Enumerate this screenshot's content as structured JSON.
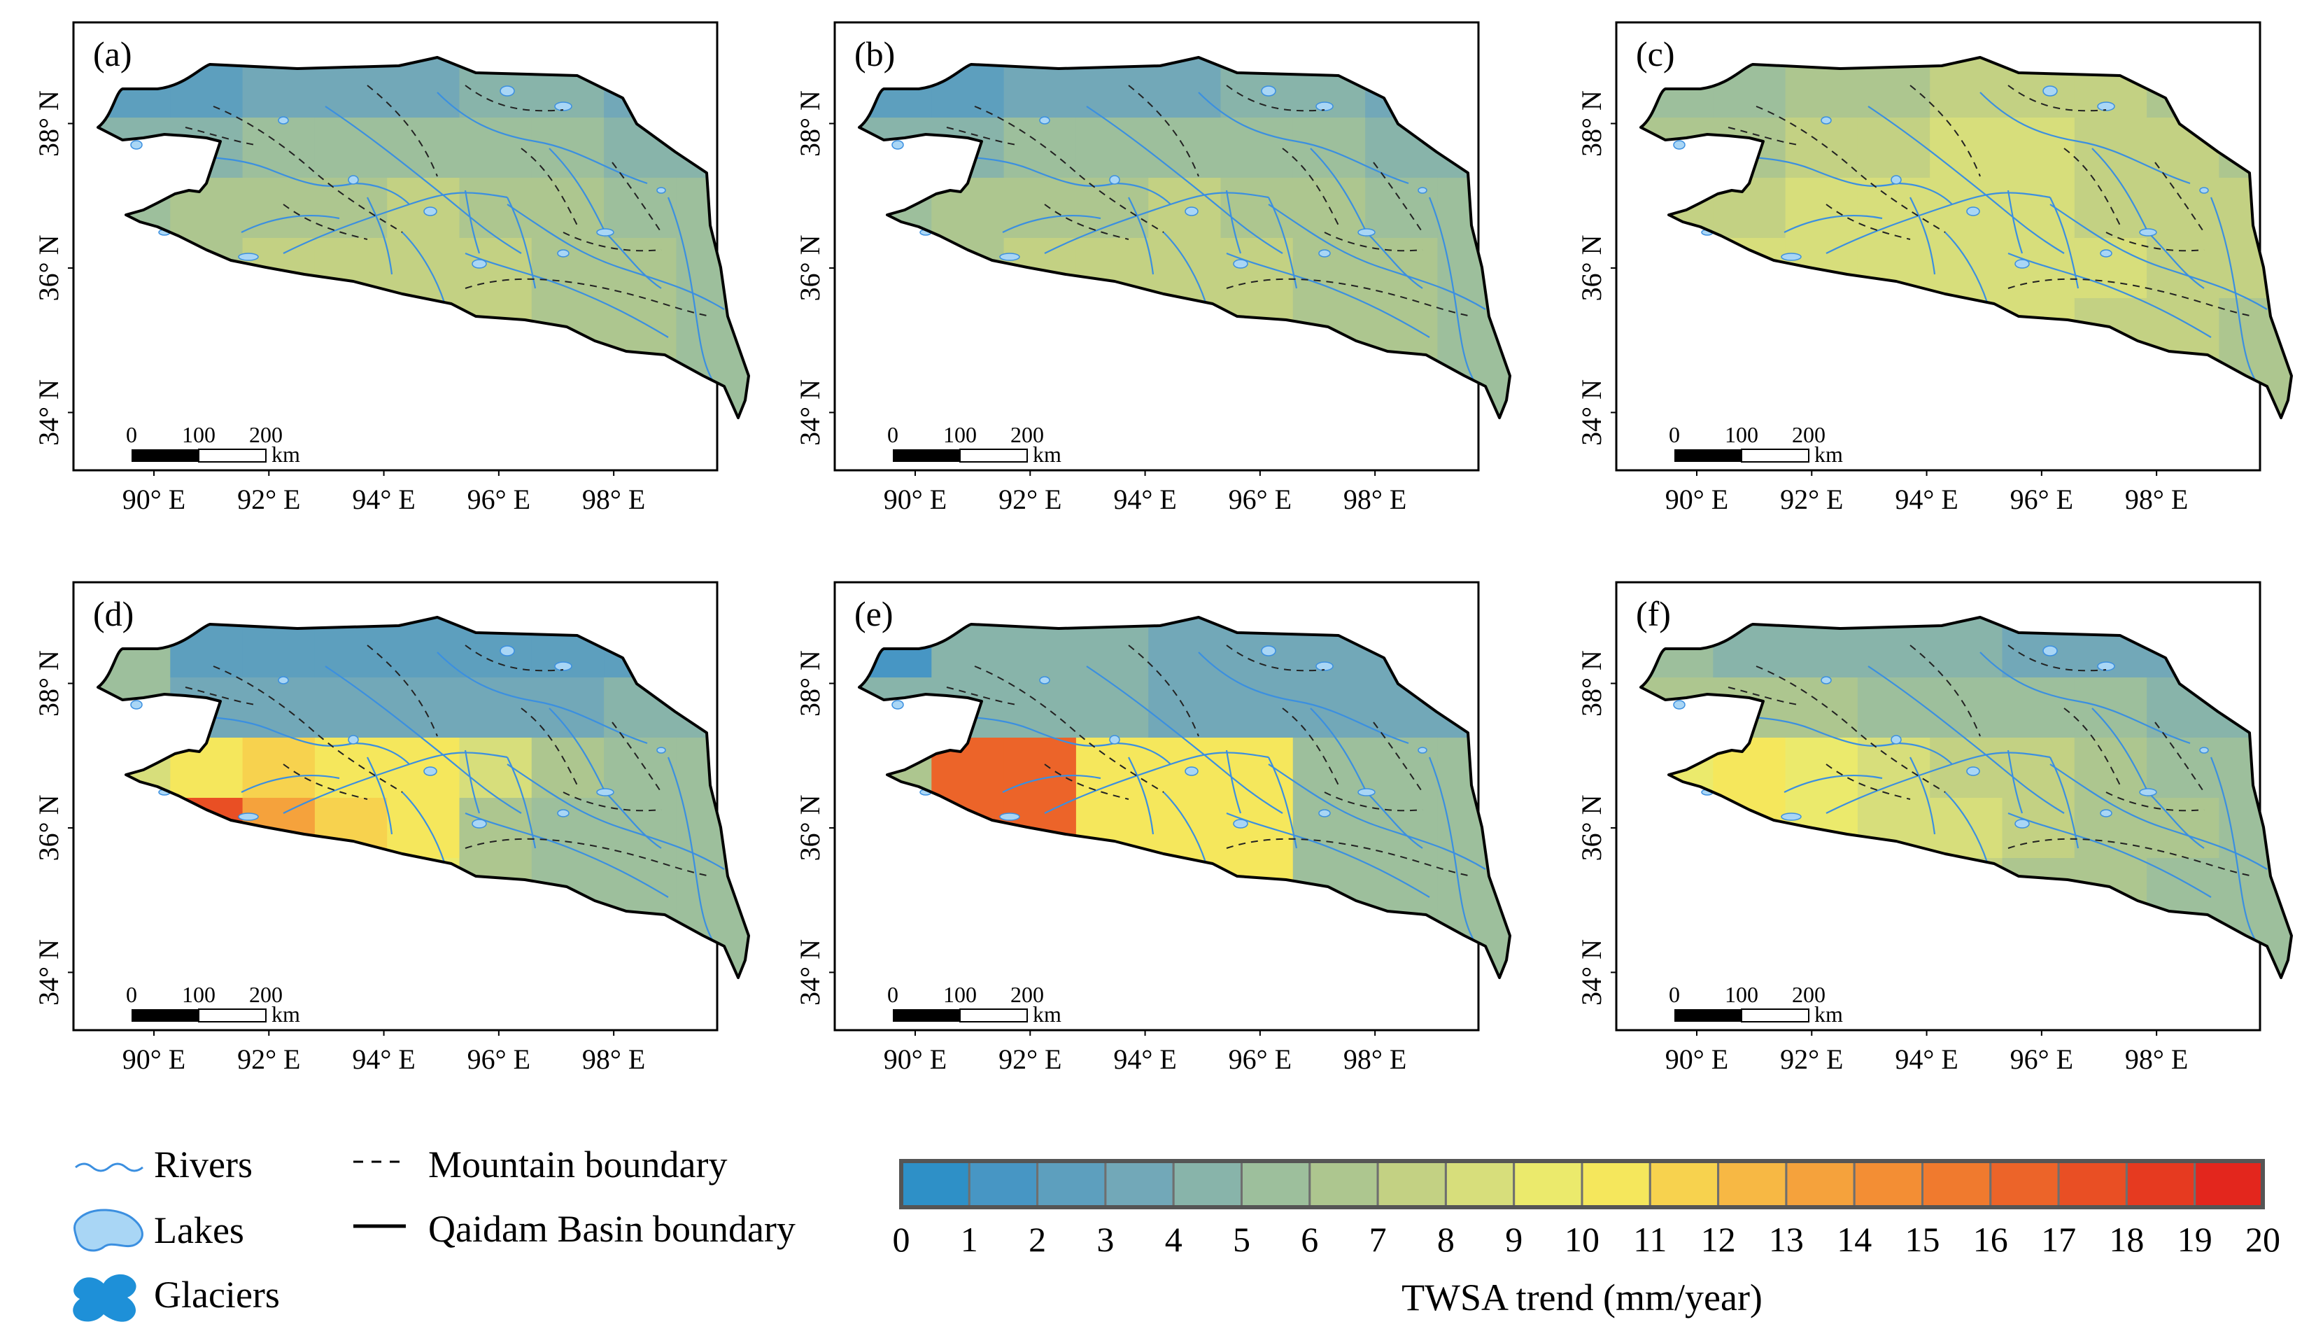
{
  "panels": [
    {
      "label": "(a)",
      "cells": [
        [
          2,
          2,
          3,
          3,
          3,
          4,
          4,
          3,
          3
        ],
        [
          4,
          4,
          5,
          5,
          5,
          5,
          5,
          4,
          4
        ],
        [
          5,
          6,
          6,
          6,
          7,
          6,
          6,
          5,
          5
        ],
        [
          6,
          6,
          7,
          7,
          7,
          7,
          6,
          6,
          5
        ],
        [
          6,
          6,
          7,
          7,
          7,
          7,
          6,
          6,
          5
        ],
        [
          6,
          6,
          6,
          6,
          6,
          6,
          6,
          5,
          5
        ]
      ]
    },
    {
      "label": "(b)",
      "cells": [
        [
          2,
          2,
          3,
          3,
          3,
          4,
          4,
          3,
          3
        ],
        [
          4,
          4,
          5,
          5,
          5,
          5,
          5,
          4,
          4
        ],
        [
          5,
          6,
          6,
          6,
          7,
          6,
          6,
          5,
          5
        ],
        [
          6,
          6,
          7,
          7,
          7,
          7,
          6,
          6,
          5
        ],
        [
          6,
          6,
          7,
          7,
          7,
          7,
          6,
          6,
          5
        ],
        [
          6,
          6,
          6,
          6,
          6,
          6,
          6,
          5,
          5
        ]
      ]
    },
    {
      "label": "(c)",
      "cells": [
        [
          5,
          5,
          6,
          6,
          7,
          7,
          7,
          6,
          6
        ],
        [
          6,
          6,
          7,
          7,
          8,
          8,
          7,
          7,
          6
        ],
        [
          7,
          7,
          8,
          8,
          8,
          8,
          7,
          7,
          7
        ],
        [
          7,
          8,
          8,
          8,
          8,
          8,
          8,
          7,
          7
        ],
        [
          7,
          7,
          8,
          8,
          8,
          8,
          7,
          7,
          6
        ],
        [
          7,
          7,
          7,
          7,
          7,
          7,
          7,
          6,
          6
        ]
      ]
    },
    {
      "label": "(d)",
      "cells": [
        [
          5,
          2,
          2,
          2,
          2,
          2,
          2,
          2,
          2
        ],
        [
          5,
          3,
          3,
          3,
          3,
          3,
          3,
          4,
          4
        ],
        [
          8,
          10,
          11,
          10,
          10,
          8,
          6,
          5,
          5
        ],
        [
          18,
          17,
          13,
          11,
          10,
          6,
          5,
          5,
          5
        ],
        [
          18,
          18,
          13,
          12,
          9,
          6,
          5,
          5,
          5
        ],
        [
          9,
          9,
          9,
          7,
          7,
          5,
          5,
          5,
          5
        ]
      ]
    },
    {
      "label": "(e)",
      "cells": [
        [
          1,
          4,
          4,
          4,
          3,
          3,
          3,
          3,
          3
        ],
        [
          4,
          4,
          4,
          4,
          3,
          3,
          3,
          3,
          3
        ],
        [
          6,
          16,
          16,
          10,
          10,
          10,
          5,
          5,
          5
        ],
        [
          16,
          16,
          16,
          10,
          10,
          10,
          5,
          5,
          5
        ],
        [
          16,
          16,
          16,
          10,
          10,
          10,
          5,
          5,
          5
        ],
        [
          6,
          6,
          6,
          10,
          10,
          10,
          5,
          5,
          5
        ]
      ]
    },
    {
      "label": "(f)",
      "cells": [
        [
          5,
          4,
          4,
          4,
          4,
          3,
          3,
          3,
          3
        ],
        [
          6,
          6,
          6,
          5,
          5,
          5,
          5,
          4,
          4
        ],
        [
          9,
          10,
          9,
          8,
          7,
          7,
          6,
          5,
          5
        ],
        [
          10,
          10,
          9,
          8,
          8,
          7,
          6,
          6,
          5
        ],
        [
          9,
          9,
          9,
          8,
          7,
          6,
          6,
          5,
          5
        ],
        [
          7,
          7,
          7,
          7,
          7,
          6,
          6,
          5,
          5
        ]
      ]
    }
  ],
  "axes": {
    "x_ticks": [
      "90° E",
      "92° E",
      "94° E",
      "96° E",
      "98° E"
    ],
    "y_ticks": [
      "38° N",
      "36° N",
      "34° N"
    ],
    "lon_range": [
      88.6,
      99.8
    ],
    "lat_range": [
      33.2,
      39.4
    ]
  },
  "scalebar": {
    "labels": [
      "0",
      "100",
      "200"
    ],
    "unit": "km"
  },
  "legend": {
    "rivers": "Rivers",
    "lakes": "Lakes",
    "glaciers": "Glaciers",
    "mountain_boundary": "Mountain boundary",
    "basin_boundary": "Qaidam Basin boundary"
  },
  "colorbar": {
    "ticks": [
      "0",
      "1",
      "2",
      "3",
      "4",
      "5",
      "6",
      "7",
      "8",
      "9",
      "10",
      "11",
      "12",
      "13",
      "14",
      "15",
      "16",
      "17",
      "18",
      "19",
      "20"
    ],
    "title": "TWSA trend (mm/year)",
    "colors": [
      "#2e90c7",
      "#4796c4",
      "#5d9fbe",
      "#72a8b8",
      "#88b4aa",
      "#9dbf9c",
      "#adc68f",
      "#c3d183",
      "#d7de7b",
      "#ebea6c",
      "#f5e75c",
      "#f7d24e",
      "#f7b844",
      "#f5a23c",
      "#f38e34",
      "#f07a2e",
      "#ec6429",
      "#e94f24",
      "#e63a20",
      "#e3261d"
    ]
  },
  "colors": {
    "river": "#3b8fe0",
    "lake": "#a9d6f5",
    "glacier": "#1e90d8",
    "boundary": "#000000"
  }
}
